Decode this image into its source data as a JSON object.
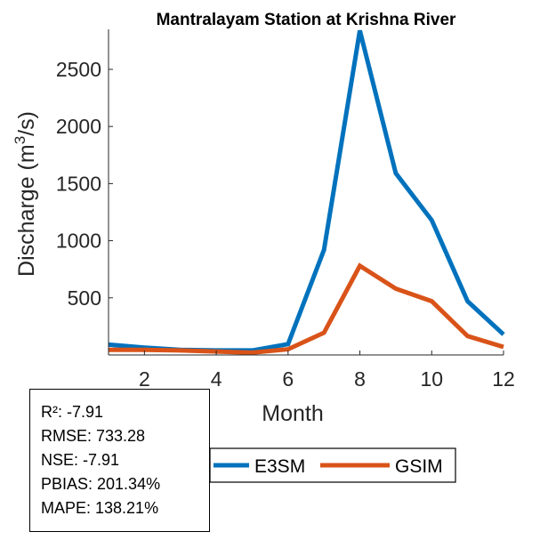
{
  "chart_data": {
    "type": "line",
    "title": "Mantralayam  Station at  Krishna  River",
    "xlabel": "Month",
    "ylabel": "Discharge (m",
    "ylabel_superscript": "3",
    "ylabel_suffix": "/s)",
    "x": [
      1,
      2,
      3,
      4,
      5,
      6,
      7,
      8,
      9,
      10,
      11,
      12
    ],
    "xlim": [
      1,
      12
    ],
    "ylim": [
      0,
      2850
    ],
    "xticks": [
      2,
      4,
      6,
      8,
      10,
      12
    ],
    "yticks": [
      500,
      1000,
      1500,
      2000,
      2500
    ],
    "grid": false,
    "series": [
      {
        "name": "E3SM",
        "color": "#0072BD",
        "values": [
          90,
          65,
          45,
          40,
          40,
          95,
          920,
          2840,
          1590,
          1180,
          470,
          180
        ]
      },
      {
        "name": "GSIM",
        "color": "#D95319",
        "values": [
          45,
          45,
          40,
          30,
          20,
          50,
          195,
          780,
          580,
          470,
          165,
          70
        ]
      }
    ],
    "legend": "bottom-center"
  },
  "stats": [
    "R²: -7.91",
    "RMSE: 733.28",
    "NSE: -7.91",
    "PBIAS: 201.34%",
    "MAPE: 138.21%"
  ]
}
